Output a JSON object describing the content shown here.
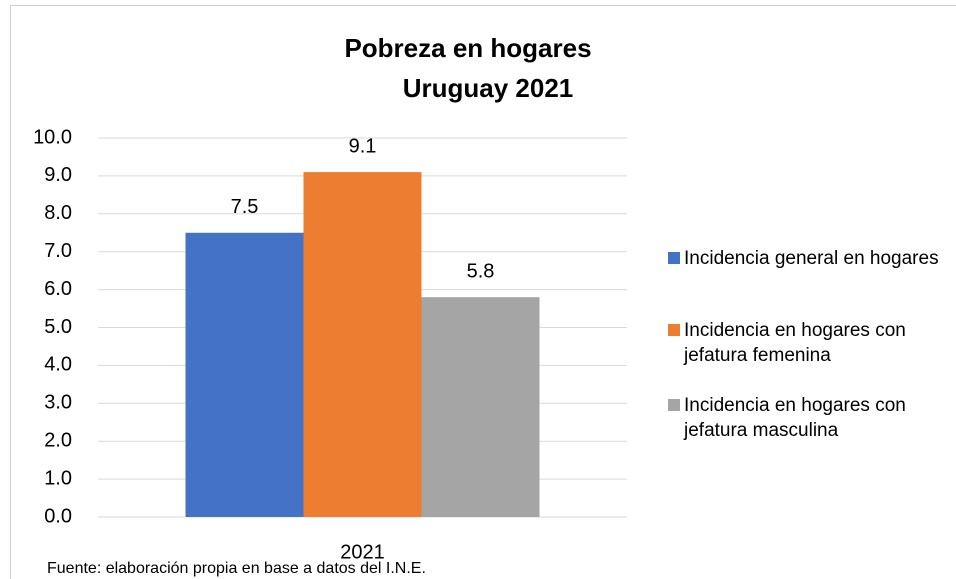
{
  "chart_data": {
    "type": "bar",
    "title": "Pobreza en hogares",
    "subtitle": "Uruguay 2021",
    "categories": [
      "2021"
    ],
    "series": [
      {
        "name": "Incidencia general en hogares",
        "color": "#4472c4",
        "values": [
          7.5
        ]
      },
      {
        "name": "Incidencia en hogares con jefatura femenina",
        "color": "#ed7d31",
        "values": [
          9.1
        ]
      },
      {
        "name": "Incidencia en hogares con jefatura masculina",
        "color": "#a5a5a5",
        "values": [
          5.8
        ]
      }
    ],
    "ylim": [
      0,
      10
    ],
    "yticks": [
      {
        "value": 0,
        "label": "0.0"
      },
      {
        "value": 1,
        "label": "1.0"
      },
      {
        "value": 2,
        "label": "2.0"
      },
      {
        "value": 3,
        "label": "3.0"
      },
      {
        "value": 4,
        "label": "4.0"
      },
      {
        "value": 5,
        "label": "5.0"
      },
      {
        "value": 6,
        "label": "6.0"
      },
      {
        "value": 7,
        "label": "7.0"
      },
      {
        "value": 8,
        "label": "8.0"
      },
      {
        "value": 9,
        "label": "9.0"
      },
      {
        "value": 10,
        "label": "10.0"
      }
    ],
    "grid": true,
    "legend": "right",
    "source": "Fuente: elaboración propia en base a datos del I.N.E."
  }
}
